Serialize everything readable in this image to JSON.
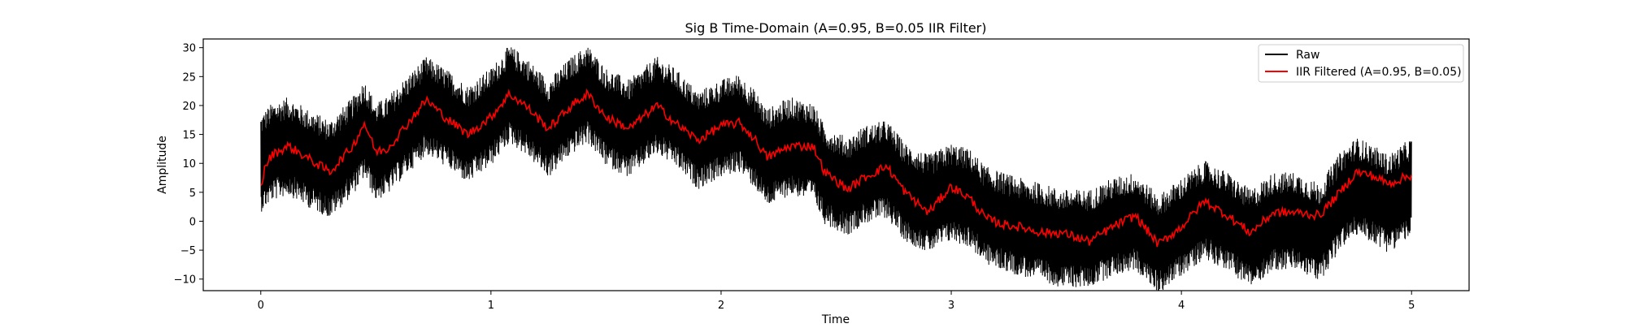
{
  "chart_data": {
    "type": "line",
    "title": "Sig B Time-Domain (A=0.95, B=0.05 IIR Filter)",
    "xlabel": "Time",
    "ylabel": "Amplitude",
    "xlim": [
      -0.25,
      5.25
    ],
    "ylim": [
      -12,
      31.5
    ],
    "x_ticks": [
      0,
      1,
      2,
      3,
      4,
      5
    ],
    "x_tick_labels": [
      "0",
      "1",
      "2",
      "3",
      "4",
      "5"
    ],
    "y_ticks": [
      -10,
      -5,
      0,
      5,
      10,
      15,
      20,
      25,
      30
    ],
    "y_tick_labels": [
      "−10",
      "−5",
      "0",
      "5",
      "10",
      "15",
      "20",
      "25",
      "30"
    ],
    "grid": false,
    "legend_position": "top-right",
    "series": [
      {
        "name": "Raw",
        "color": "#000000",
        "band_half_width": 8.5,
        "x": [
          0,
          0.05,
          0.12,
          0.2,
          0.3,
          0.4,
          0.45,
          0.5,
          0.55,
          0.62,
          0.72,
          0.8,
          0.9,
          1.0,
          1.08,
          1.15,
          1.25,
          1.35,
          1.42,
          1.5,
          1.6,
          1.72,
          1.8,
          1.9,
          2.0,
          2.08,
          2.15,
          2.2,
          2.3,
          2.4,
          2.45,
          2.55,
          2.62,
          2.72,
          2.8,
          2.9,
          3.0,
          3.08,
          3.15,
          3.22,
          3.3,
          3.4,
          3.48,
          3.6,
          3.7,
          3.8,
          3.9,
          4.0,
          4.1,
          4.2,
          4.3,
          4.4,
          4.5,
          4.6,
          4.7,
          4.76,
          4.82,
          4.9,
          5.0
        ],
        "y": [
          10,
          12,
          13,
          11,
          9,
          13,
          16,
          12,
          13,
          16,
          20,
          18,
          15,
          18,
          22,
          20,
          16,
          20,
          22,
          18,
          16,
          20,
          18,
          14,
          16,
          17,
          14,
          11,
          13,
          12,
          8,
          6,
          8,
          9,
          5,
          3,
          5,
          4,
          1,
          0,
          -1,
          -2,
          -3,
          -3,
          -1,
          0,
          -4,
          -1,
          2,
          0,
          -3,
          0,
          0,
          -2,
          4,
          6,
          5,
          3,
          6
        ]
      },
      {
        "name": "IIR Filtered (A=0.95, B=0.05)",
        "color": "#ff0000",
        "x": [
          0,
          0.02,
          0.05,
          0.12,
          0.2,
          0.3,
          0.4,
          0.45,
          0.5,
          0.55,
          0.62,
          0.72,
          0.8,
          0.9,
          1.0,
          1.08,
          1.15,
          1.25,
          1.35,
          1.42,
          1.5,
          1.6,
          1.72,
          1.8,
          1.9,
          2.0,
          2.08,
          2.15,
          2.2,
          2.3,
          2.4,
          2.45,
          2.55,
          2.62,
          2.72,
          2.8,
          2.9,
          3.0,
          3.08,
          3.15,
          3.22,
          3.3,
          3.4,
          3.48,
          3.6,
          3.7,
          3.8,
          3.9,
          4.0,
          4.1,
          4.2,
          4.3,
          4.4,
          4.5,
          4.6,
          4.7,
          4.76,
          4.82,
          4.9,
          5.0
        ],
        "y": [
          6,
          9.5,
          11.5,
          13,
          11,
          8.5,
          13,
          17,
          12,
          12.5,
          16,
          21,
          18,
          15,
          18,
          22,
          20,
          16,
          20,
          22,
          18,
          16,
          20,
          17,
          14,
          16.5,
          17,
          14,
          11,
          13,
          13,
          8.5,
          5.5,
          7.5,
          9.5,
          5,
          1.5,
          6,
          4,
          0.5,
          -0.5,
          -1,
          -2,
          -2,
          -3.5,
          -1,
          1,
          -4,
          -1,
          3.5,
          1,
          -2,
          1.5,
          1.5,
          1,
          5.5,
          8.5,
          8,
          6.5,
          8
        ]
      }
    ]
  }
}
